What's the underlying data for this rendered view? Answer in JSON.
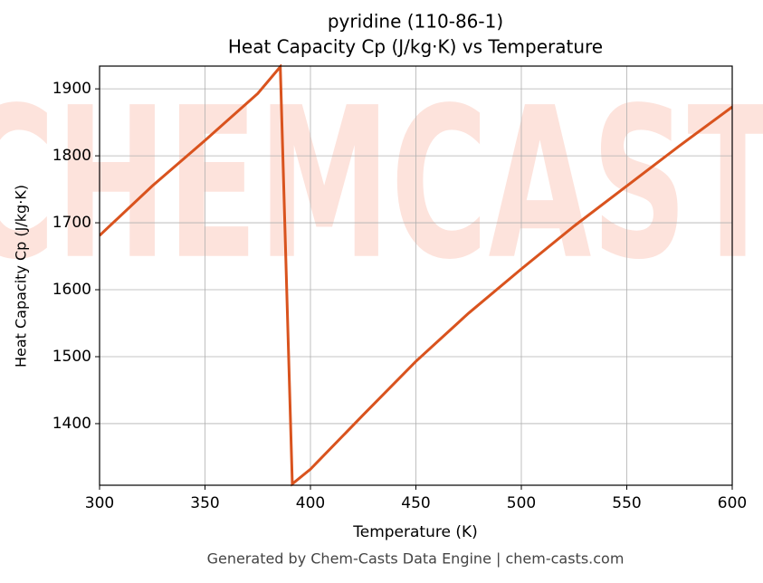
{
  "chart_data": {
    "type": "line",
    "title": "pyridine (110-86-1)",
    "subtitle": "Heat Capacity Cp (J/kg·K) vs Temperature",
    "x_label": "Temperature (K)",
    "y_label": "Heat Capacity Cp (J/kg·K)",
    "footer": "Generated by Chem-Casts Data Engine | chem-casts.com",
    "watermark": "CHEMCASTS",
    "x": [
      300,
      325,
      350,
      375,
      385.7,
      391.4,
      400,
      425,
      450,
      475,
      500,
      525,
      550,
      575,
      600
    ],
    "series": [
      {
        "name": "Cp",
        "color": "#d9531e",
        "values": [
          1681,
          1755,
          1823,
          1893,
          1933,
          1310,
          1332,
          1413,
          1493,
          1565,
          1631,
          1695,
          1755,
          1815,
          1873
        ]
      }
    ],
    "xlim": [
      300,
      600
    ],
    "xticks": [
      300,
      350,
      400,
      450,
      500,
      550,
      600
    ],
    "ylim": [
      1308,
      1934
    ],
    "yticks": [
      1400,
      1500,
      1600,
      1700,
      1800,
      1900
    ],
    "grid": true
  }
}
